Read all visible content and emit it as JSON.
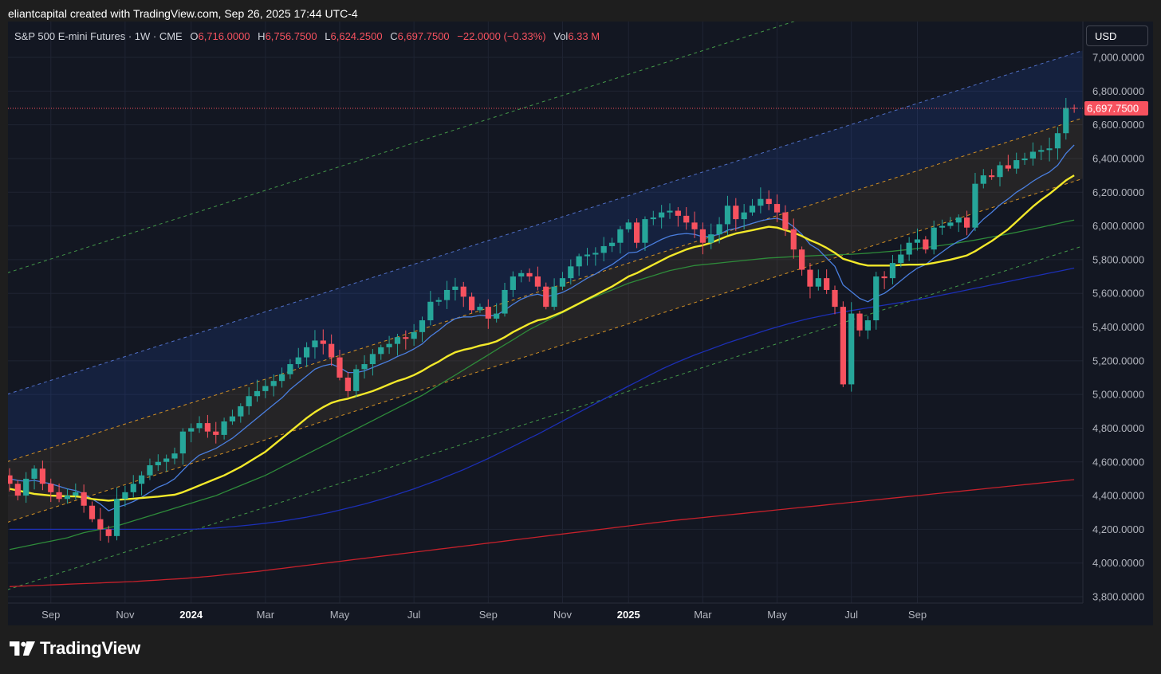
{
  "header": {
    "attribution": "eliantcapital created with TradingView.com, Sep 26, 2025 17:44 UTC-4"
  },
  "legend": {
    "symbol": "S&P 500 E-mini Futures · 1W · CME",
    "open_label": "O",
    "open": "6,716.0000",
    "high_label": "H",
    "high": "6,756.7500",
    "low_label": "L",
    "low": "6,624.2500",
    "close_label": "C",
    "close": "6,697.7500",
    "change": "−22.0000 (−0.33%)",
    "vol_label": "Vol",
    "vol": "6.33 M"
  },
  "currency_button": "USD",
  "brand": {
    "name": "TradingView",
    "logo": "tradingview-logo-icon"
  },
  "colors": {
    "background": "#131722",
    "up": "#26a69a",
    "down": "#f7525f",
    "ema_fast": "#4a7fe0",
    "ema_slow": "#f3e92a",
    "sma_100": "#2e8b3a",
    "sma_200": "#1c2fb5",
    "sma_300": "#c6212b"
  },
  "chart_data": {
    "type": "candlestick",
    "interval": "1W",
    "last_price": 6697.75,
    "last_price_label": "6,697.7500",
    "y_axis": {
      "min": 3750,
      "max": 7100,
      "ticks": [
        3800,
        4000,
        4200,
        4400,
        4600,
        4800,
        5000,
        5200,
        5400,
        5600,
        5800,
        6000,
        6200,
        6400,
        6600,
        6800,
        7000
      ],
      "tick_labels": [
        "3,800.0000",
        "4,000.0000",
        "4,200.0000",
        "4,400.0000",
        "4,600.0000",
        "4,800.0000",
        "5,000.0000",
        "5,200.0000",
        "5,400.0000",
        "5,600.0000",
        "5,800.0000",
        "6,000.0000",
        "6,200.0000",
        "6,400.0000",
        "6,600.0000",
        "6,800.0000",
        "7,000.0000"
      ]
    },
    "x_axis": {
      "labels": [
        {
          "text": "Sep",
          "week": 5,
          "bold": false
        },
        {
          "text": "Nov",
          "week": 14,
          "bold": false
        },
        {
          "text": "2024",
          "week": 22,
          "bold": true
        },
        {
          "text": "Mar",
          "week": 31,
          "bold": false
        },
        {
          "text": "May",
          "week": 40,
          "bold": false
        },
        {
          "text": "Jul",
          "week": 49,
          "bold": false
        },
        {
          "text": "Sep",
          "week": 58,
          "bold": false
        },
        {
          "text": "Nov",
          "week": 67,
          "bold": false
        },
        {
          "text": "2025",
          "week": 75,
          "bold": true
        },
        {
          "text": "Mar",
          "week": 84,
          "bold": false
        },
        {
          "text": "May",
          "week": 93,
          "bold": false
        },
        {
          "text": "Jul",
          "week": 102,
          "bold": false
        },
        {
          "text": "Sep",
          "week": 110,
          "bold": false
        }
      ]
    },
    "closes": [
      4470,
      4400,
      4500,
      4560,
      4470,
      4420,
      4380,
      4400,
      4420,
      4340,
      4260,
      4200,
      4160,
      4380,
      4420,
      4470,
      4520,
      4580,
      4600,
      4620,
      4650,
      4780,
      4800,
      4830,
      4780,
      4760,
      4840,
      4870,
      4930,
      4990,
      5020,
      5050,
      5080,
      5120,
      5180,
      5220,
      5280,
      5320,
      5300,
      5220,
      5100,
      5020,
      5150,
      5180,
      5240,
      5280,
      5300,
      5340,
      5330,
      5370,
      5440,
      5550,
      5560,
      5620,
      5640,
      5580,
      5500,
      5520,
      5450,
      5480,
      5620,
      5700,
      5720,
      5700,
      5640,
      5520,
      5640,
      5690,
      5760,
      5820,
      5830,
      5840,
      5880,
      5900,
      5980,
      6020,
      5900,
      6040,
      6050,
      6080,
      6090,
      6060,
      6020,
      5980,
      5900,
      5950,
      6010,
      6120,
      6040,
      6080,
      6120,
      6160,
      6130,
      6080,
      5980,
      5860,
      5740,
      5640,
      5690,
      5620,
      5520,
      5060,
      5480,
      5380,
      5440,
      5700,
      5690,
      5780,
      5830,
      5900,
      5920,
      5860,
      5990,
      6000,
      6020,
      6050,
      5990,
      6250,
      6300,
      6290,
      6360,
      6340,
      6390,
      6400,
      6440,
      6450,
      6460,
      6550,
      6700,
      6697.75
    ],
    "ema_fast": [
      4500,
      4490,
      4485,
      4490,
      4480,
      4470,
      4455,
      4440,
      4430,
      4410,
      4380,
      4350,
      4310,
      4330,
      4345,
      4365,
      4390,
      4420,
      4450,
      4470,
      4500,
      4550,
      4600,
      4640,
      4660,
      4680,
      4710,
      4740,
      4780,
      4820,
      4860,
      4900,
      4940,
      4980,
      5030,
      5070,
      5110,
      5150,
      5170,
      5180,
      5160,
      5130,
      5130,
      5140,
      5160,
      5180,
      5200,
      5225,
      5245,
      5270,
      5300,
      5345,
      5380,
      5420,
      5450,
      5460,
      5460,
      5470,
      5465,
      5470,
      5500,
      5535,
      5565,
      5585,
      5595,
      5580,
      5590,
      5605,
      5630,
      5660,
      5690,
      5715,
      5745,
      5770,
      5805,
      5840,
      5845,
      5870,
      5895,
      5920,
      5940,
      5950,
      5955,
      5950,
      5935,
      5940,
      5950,
      5975,
      5985,
      6000,
      6015,
      6030,
      6040,
      6045,
      6030,
      5995,
      5950,
      5890,
      5860,
      5810,
      5760,
      5650,
      5610,
      5570,
      5550,
      5580,
      5600,
      5635,
      5675,
      5715,
      5750,
      5770,
      5810,
      5845,
      5880,
      5910,
      5930,
      5990,
      6040,
      6080,
      6125,
      6160,
      6200,
      6230,
      6265,
      6295,
      6320,
      6360,
      6430,
      6480
    ],
    "ema_slow": [
      4440,
      4430,
      4420,
      4410,
      4405,
      4400,
      4398,
      4396,
      4395,
      4390,
      4380,
      4375,
      4370,
      4375,
      4378,
      4382,
      4386,
      4390,
      4394,
      4400,
      4405,
      4420,
      4440,
      4460,
      4480,
      4500,
      4520,
      4545,
      4570,
      4600,
      4630,
      4660,
      4700,
      4740,
      4780,
      4820,
      4860,
      4895,
      4925,
      4950,
      4965,
      4975,
      4990,
      5005,
      5020,
      5040,
      5060,
      5080,
      5095,
      5115,
      5140,
      5170,
      5195,
      5225,
      5250,
      5265,
      5275,
      5290,
      5300,
      5315,
      5340,
      5370,
      5395,
      5420,
      5440,
      5450,
      5470,
      5490,
      5515,
      5540,
      5565,
      5590,
      5615,
      5640,
      5670,
      5700,
      5720,
      5745,
      5770,
      5795,
      5820,
      5840,
      5860,
      5875,
      5885,
      5900,
      5920,
      5940,
      5955,
      5965,
      5975,
      5985,
      5995,
      5990,
      5975,
      5960,
      5940,
      5915,
      5895,
      5870,
      5840,
      5805,
      5790,
      5775,
      5765,
      5765,
      5765,
      5765,
      5768,
      5770,
      5770,
      5772,
      5780,
      5790,
      5800,
      5812,
      5825,
      5850,
      5880,
      5910,
      5945,
      5980,
      6025,
      6070,
      6115,
      6155,
      6190,
      6230,
      6270,
      6300
    ],
    "sma_100": [
      4080,
      4090,
      4100,
      4110,
      4120,
      4130,
      4140,
      4150,
      4165,
      4180,
      4190,
      4200,
      4210,
      4220,
      4235,
      4250,
      4265,
      4280,
      4295,
      4310,
      4325,
      4340,
      4355,
      4370,
      4385,
      4400,
      4420,
      4440,
      4460,
      4480,
      4500,
      4520,
      4545,
      4570,
      4595,
      4620,
      4645,
      4670,
      4695,
      4720,
      4745,
      4770,
      4795,
      4820,
      4845,
      4870,
      4895,
      4920,
      4945,
      4970,
      4995,
      5025,
      5055,
      5085,
      5115,
      5145,
      5175,
      5205,
      5235,
      5265,
      5295,
      5325,
      5355,
      5385,
      5410,
      5435,
      5460,
      5485,
      5510,
      5535,
      5560,
      5580,
      5600,
      5620,
      5640,
      5660,
      5675,
      5690,
      5705,
      5720,
      5735,
      5745,
      5755,
      5765,
      5770,
      5775,
      5780,
      5785,
      5790,
      5795,
      5800,
      5805,
      5810,
      5812,
      5815,
      5818,
      5820,
      5822,
      5825,
      5827,
      5830,
      5830,
      5832,
      5835,
      5838,
      5842,
      5846,
      5850,
      5855,
      5860,
      5866,
      5872,
      5878,
      5885,
      5892,
      5900,
      5908,
      5916,
      5925,
      5934,
      5943,
      5952,
      5962,
      5972,
      5982,
      5992,
      6003,
      6014,
      6025,
      6035
    ],
    "sma_200": [
      4200,
      4200,
      4200,
      4200,
      4200,
      4200,
      4200,
      4200,
      4200,
      4200,
      4200,
      4200,
      4200,
      4200,
      4200,
      4200,
      4200,
      4200,
      4200,
      4200,
      4200,
      4200,
      4200,
      4202,
      4205,
      4208,
      4212,
      4216,
      4220,
      4225,
      4230,
      4236,
      4242,
      4248,
      4256,
      4264,
      4272,
      4282,
      4292,
      4302,
      4314,
      4326,
      4338,
      4350,
      4364,
      4378,
      4392,
      4408,
      4424,
      4440,
      4458,
      4476,
      4494,
      4514,
      4534,
      4554,
      4576,
      4598,
      4620,
      4644,
      4668,
      4692,
      4716,
      4740,
      4764,
      4790,
      4816,
      4842,
      4868,
      4894,
      4920,
      4946,
      4972,
      4998,
      5024,
      5050,
      5075,
      5100,
      5125,
      5150,
      5172,
      5194,
      5214,
      5234,
      5252,
      5270,
      5288,
      5306,
      5322,
      5338,
      5354,
      5370,
      5386,
      5400,
      5414,
      5428,
      5440,
      5452,
      5462,
      5472,
      5482,
      5490,
      5498,
      5506,
      5514,
      5522,
      5530,
      5538,
      5546,
      5554,
      5562,
      5570,
      5580,
      5590,
      5600,
      5610,
      5620,
      5630,
      5640,
      5650,
      5660,
      5670,
      5680,
      5690,
      5700,
      5710,
      5720,
      5730,
      5740,
      5750
    ],
    "sma_300": [
      3860,
      3862,
      3864,
      3866,
      3868,
      3870,
      3872,
      3874,
      3876,
      3878,
      3880,
      3882,
      3884,
      3886,
      3888,
      3890,
      3893,
      3896,
      3899,
      3902,
      3905,
      3908,
      3912,
      3916,
      3920,
      3925,
      3930,
      3935,
      3940,
      3945,
      3950,
      3956,
      3962,
      3968,
      3974,
      3980,
      3986,
      3992,
      3998,
      4004,
      4010,
      4016,
      4022,
      4028,
      4034,
      4040,
      4046,
      4052,
      4058,
      4064,
      4070,
      4076,
      4082,
      4088,
      4094,
      4100,
      4106,
      4112,
      4118,
      4124,
      4130,
      4136,
      4142,
      4148,
      4154,
      4160,
      4166,
      4172,
      4178,
      4184,
      4190,
      4196,
      4202,
      4208,
      4214,
      4220,
      4226,
      4232,
      4238,
      4244,
      4250,
      4255,
      4260,
      4265,
      4270,
      4275,
      4280,
      4285,
      4290,
      4295,
      4300,
      4305,
      4310,
      4315,
      4320,
      4325,
      4330,
      4335,
      4340,
      4345,
      4350,
      4355,
      4360,
      4365,
      4370,
      4375,
      4380,
      4385,
      4390,
      4395,
      4400,
      4405,
      4410,
      4415,
      4420,
      4425,
      4430,
      4435,
      4440,
      4445,
      4450,
      4455,
      4460,
      4465,
      4470,
      4475,
      4480,
      4485,
      4490,
      4495
    ],
    "regression_channel": {
      "color": "#26a69a",
      "start": {
        "week": -1,
        "value": 4410
      },
      "end": {
        "week": 130,
        "value": 6460
      },
      "offsets": [
        {
          "value": 1300,
          "color": "#4caf50"
        },
        {
          "value": 580,
          "color": "#5b7ee0"
        },
        {
          "value": 180,
          "color": "#f5a623"
        },
        {
          "value": -180,
          "color": "#f5a623"
        },
        {
          "value": -580,
          "color": "#4caf50"
        }
      ]
    }
  }
}
